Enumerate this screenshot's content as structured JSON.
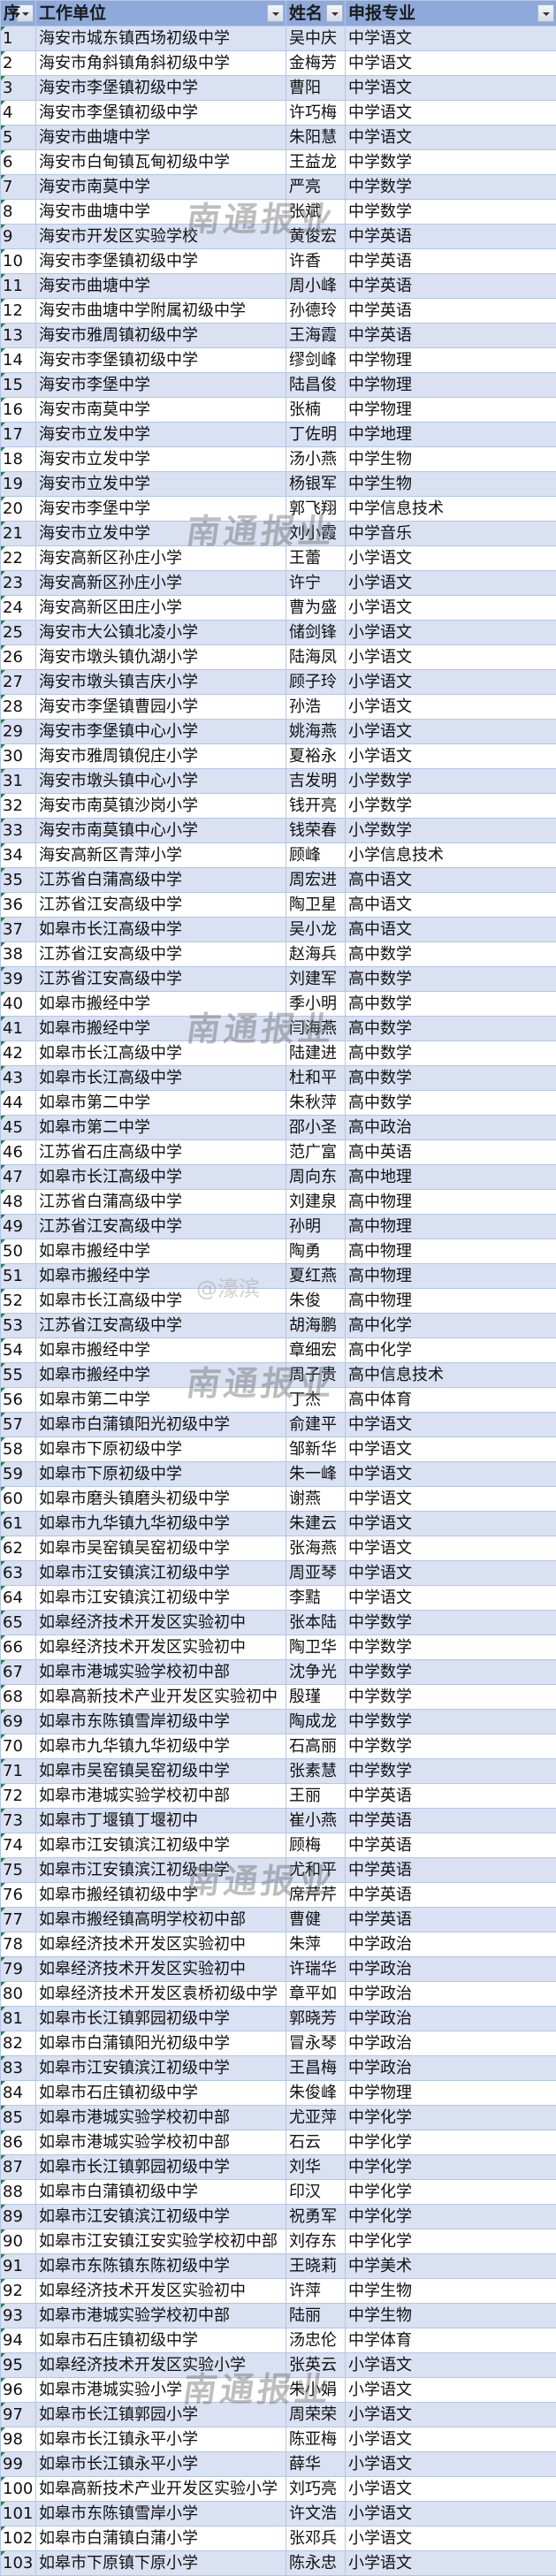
{
  "headers": [
    "序",
    "工作单位",
    "姓名",
    "申报专业"
  ],
  "watermark": "南通报业",
  "watermark_handle": "@濠滨",
  "colors": {
    "header_bg": "#8eaadb",
    "band_bg": "#d9e1f2",
    "border": "#b4c6e7"
  },
  "rows": [
    [
      "1",
      "海安市城东镇西场初级中学",
      "吴中庆",
      "中学语文"
    ],
    [
      "2",
      "海安市角斜镇角斜初级中学",
      "金梅芳",
      "中学语文"
    ],
    [
      "3",
      "海安市李堡镇初级中学",
      "曹阳",
      "中学语文"
    ],
    [
      "4",
      "海安市李堡镇初级中学",
      "许巧梅",
      "中学语文"
    ],
    [
      "5",
      "海安市曲塘中学",
      "朱阳慧",
      "中学语文"
    ],
    [
      "6",
      "海安市白甸镇瓦甸初级中学",
      "王益龙",
      "中学数学"
    ],
    [
      "7",
      "海安市南莫中学",
      "严亮",
      "中学数学"
    ],
    [
      "8",
      "海安市曲塘中学",
      "张斌",
      "中学数学"
    ],
    [
      "9",
      "海安市开发区实验学校",
      "黄俊宏",
      "中学英语"
    ],
    [
      "10",
      "海安市李堡镇初级中学",
      "许香",
      "中学英语"
    ],
    [
      "11",
      "海安市曲塘中学",
      "周小峰",
      "中学英语"
    ],
    [
      "12",
      "海安市曲塘中学附属初级中学",
      "孙德玲",
      "中学英语"
    ],
    [
      "13",
      "海安市雅周镇初级中学",
      "王海霞",
      "中学英语"
    ],
    [
      "14",
      "海安市李堡镇初级中学",
      "缪剑峰",
      "中学物理"
    ],
    [
      "15",
      "海安市李堡中学",
      "陆昌俊",
      "中学物理"
    ],
    [
      "16",
      "海安市南莫中学",
      "张楠",
      "中学物理"
    ],
    [
      "17",
      "海安市立发中学",
      "丁佐明",
      "中学地理"
    ],
    [
      "18",
      "海安市立发中学",
      "汤小燕",
      "中学生物"
    ],
    [
      "19",
      "海安市立发中学",
      "杨银军",
      "中学生物"
    ],
    [
      "20",
      "海安市李堡中学",
      "郭飞翔",
      "中学信息技术"
    ],
    [
      "21",
      "海安市立发中学",
      "刘小霞",
      "中学音乐"
    ],
    [
      "22",
      "海安高新区孙庄小学",
      "王蕾",
      "小学语文"
    ],
    [
      "23",
      "海安高新区孙庄小学",
      "许宁",
      "小学语文"
    ],
    [
      "24",
      "海安高新区田庄小学",
      "曹为盛",
      "小学语文"
    ],
    [
      "25",
      "海安市大公镇北凌小学",
      "储剑锋",
      "小学语文"
    ],
    [
      "26",
      "海安市墩头镇仇湖小学",
      "陆海凤",
      "小学语文"
    ],
    [
      "27",
      "海安市墩头镇吉庆小学",
      "顾子玲",
      "小学语文"
    ],
    [
      "28",
      "海安市李堡镇曹园小学",
      "孙浩",
      "小学语文"
    ],
    [
      "29",
      "海安市李堡镇中心小学",
      "姚海燕",
      "小学语文"
    ],
    [
      "30",
      "海安市雅周镇倪庄小学",
      "夏裕永",
      "小学语文"
    ],
    [
      "31",
      "海安市墩头镇中心小学",
      "吉发明",
      "小学数学"
    ],
    [
      "32",
      "海安市南莫镇沙岗小学",
      "钱开亮",
      "小学数学"
    ],
    [
      "33",
      "海安市南莫镇中心小学",
      "钱荣春",
      "小学数学"
    ],
    [
      "34",
      "海安高新区青萍小学",
      "顾峰",
      "小学信息技术"
    ],
    [
      "35",
      "江苏省白蒲高级中学",
      "周宏进",
      "高中语文"
    ],
    [
      "36",
      "江苏省江安高级中学",
      "陶卫星",
      "高中语文"
    ],
    [
      "37",
      "如皋市长江高级中学",
      "吴小龙",
      "高中语文"
    ],
    [
      "38",
      "江苏省江安高级中学",
      "赵海兵",
      "高中数学"
    ],
    [
      "39",
      "江苏省江安高级中学",
      "刘建军",
      "高中数学"
    ],
    [
      "40",
      "如皋市搬经中学",
      "季小明",
      "高中数学"
    ],
    [
      "41",
      "如皋市搬经中学",
      "闫海燕",
      "高中数学"
    ],
    [
      "42",
      "如皋市长江高级中学",
      "陆建进",
      "高中数学"
    ],
    [
      "43",
      "如皋市长江高级中学",
      "杜和平",
      "高中数学"
    ],
    [
      "44",
      "如皋市第二中学",
      "朱秋萍",
      "高中数学"
    ],
    [
      "45",
      "如皋市第二中学",
      "邵小圣",
      "高中政治"
    ],
    [
      "46",
      "江苏省石庄高级中学",
      "范广富",
      "高中英语"
    ],
    [
      "47",
      "如皋市长江高级中学",
      "周向东",
      "高中地理"
    ],
    [
      "48",
      "江苏省白蒲高级中学",
      "刘建泉",
      "高中物理"
    ],
    [
      "49",
      "江苏省江安高级中学",
      "孙明",
      "高中物理"
    ],
    [
      "50",
      "如皋市搬经中学",
      "陶勇",
      "高中物理"
    ],
    [
      "51",
      "如皋市搬经中学",
      "夏红燕",
      "高中物理"
    ],
    [
      "52",
      "如皋市长江高级中学",
      "朱俊",
      "高中物理"
    ],
    [
      "53",
      "江苏省江安高级中学",
      "胡海鹏",
      "高中化学"
    ],
    [
      "54",
      "如皋市搬经中学",
      "章细宏",
      "高中化学"
    ],
    [
      "55",
      "如皋市搬经中学",
      "周子贵",
      "高中信息技术"
    ],
    [
      "56",
      "如皋市第二中学",
      "丁杰",
      "高中体育"
    ],
    [
      "57",
      "如皋市白蒲镇阳光初级中学",
      "俞建平",
      "中学语文"
    ],
    [
      "58",
      "如皋市下原初级中学",
      "邹新华",
      "中学语文"
    ],
    [
      "59",
      "如皋市下原初级中学",
      "朱一峰",
      "中学语文"
    ],
    [
      "60",
      "如皋市磨头镇磨头初级中学",
      "谢燕",
      "中学语文"
    ],
    [
      "61",
      "如皋市九华镇九华初级中学",
      "朱建云",
      "中学语文"
    ],
    [
      "62",
      "如皋市吴窑镇吴窑初级中学",
      "张海燕",
      "中学语文"
    ],
    [
      "63",
      "如皋市江安镇滨江初级中学",
      "周亚琴",
      "中学语文"
    ],
    [
      "64",
      "如皋市江安镇滨江初级中学",
      "李黠",
      "中学语文"
    ],
    [
      "65",
      "如皋经济技术开发区实验初中",
      "张本陆",
      "中学数学"
    ],
    [
      "66",
      "如皋经济技术开发区实验初中",
      "陶卫华",
      "中学数学"
    ],
    [
      "67",
      "如皋市港城实验学校初中部",
      "沈争光",
      "中学数学"
    ],
    [
      "68",
      "如皋高新技术产业开发区实验初中",
      "殷瑾",
      "中学数学"
    ],
    [
      "69",
      "如皋市东陈镇雪岸初级中学",
      "陶成龙",
      "中学数学"
    ],
    [
      "70",
      "如皋市九华镇九华初级中学",
      "石高丽",
      "中学数学"
    ],
    [
      "71",
      "如皋市吴窑镇吴窑初级中学",
      "张素慧",
      "中学数学"
    ],
    [
      "72",
      "如皋市港城实验学校初中部",
      "王丽",
      "中学英语"
    ],
    [
      "73",
      "如皋市丁堰镇丁堰初中",
      "崔小燕",
      "中学英语"
    ],
    [
      "74",
      "如皋市江安镇滨江初级中学",
      "顾梅",
      "中学英语"
    ],
    [
      "75",
      "如皋市江安镇滨江初级中学",
      "尤和平",
      "中学英语"
    ],
    [
      "76",
      "如皋市搬经镇初级中学",
      "席芹芹",
      "中学英语"
    ],
    [
      "77",
      "如皋市搬经镇高明学校初中部",
      "曹健",
      "中学英语"
    ],
    [
      "78",
      "如皋经济技术开发区实验初中",
      "朱萍",
      "中学政治"
    ],
    [
      "79",
      "如皋经济技术开发区实验初中",
      "许瑞华",
      "中学政治"
    ],
    [
      "80",
      "如皋经济技术开发区袁桥初级中学",
      "章平如",
      "中学政治"
    ],
    [
      "81",
      "如皋市长江镇郭园初级中学",
      "郭晓芳",
      "中学政治"
    ],
    [
      "82",
      "如皋市白蒲镇阳光初级中学",
      "冒永琴",
      "中学政治"
    ],
    [
      "83",
      "如皋市江安镇滨江初级中学",
      "王昌梅",
      "中学政治"
    ],
    [
      "84",
      "如皋市石庄镇初级中学",
      "朱俊峰",
      "中学物理"
    ],
    [
      "85",
      "如皋市港城实验学校初中部",
      "尤亚萍",
      "中学化学"
    ],
    [
      "86",
      "如皋市港城实验学校初中部",
      "石云",
      "中学化学"
    ],
    [
      "87",
      "如皋市长江镇郭园初级中学",
      "刘华",
      "中学化学"
    ],
    [
      "88",
      "如皋市白蒲镇初级中学",
      "印汉",
      "中学化学"
    ],
    [
      "89",
      "如皋市江安镇滨江初级中学",
      "祝勇军",
      "中学化学"
    ],
    [
      "90",
      "如皋市江安镇江安实验学校初中部",
      "刘存东",
      "中学化学"
    ],
    [
      "91",
      "如皋市东陈镇东陈初级中学",
      "王晓莉",
      "中学美术"
    ],
    [
      "92",
      "如皋经济技术开发区实验初中",
      "许萍",
      "中学生物"
    ],
    [
      "93",
      "如皋市港城实验学校初中部",
      "陆丽",
      "中学生物"
    ],
    [
      "94",
      "如皋市石庄镇初级中学",
      "汤忠伦",
      "中学体育"
    ],
    [
      "95",
      "如皋经济技术开发区实验小学",
      "张英云",
      "小学语文"
    ],
    [
      "96",
      "如皋市港城实验小学",
      "朱小娟",
      "小学语文"
    ],
    [
      "97",
      "如皋市长江镇郭园小学",
      "周荣荣",
      "小学语文"
    ],
    [
      "98",
      "如皋市长江镇永平小学",
      "陈亚梅",
      "小学语文"
    ],
    [
      "99",
      "如皋市长江镇永平小学",
      "薛华",
      "小学语文"
    ],
    [
      "100",
      "如皋高新技术产业开发区实验小学",
      "刘巧亮",
      "小学语文"
    ],
    [
      "101",
      "如皋市东陈镇雪岸小学",
      "许文浩",
      "小学语文"
    ],
    [
      "102",
      "如皋市白蒲镇白蒲小学",
      "张邓兵",
      "小学语文"
    ],
    [
      "103",
      "如皋市下原镇下原小学",
      "陈永忠",
      "小学语文"
    ]
  ]
}
